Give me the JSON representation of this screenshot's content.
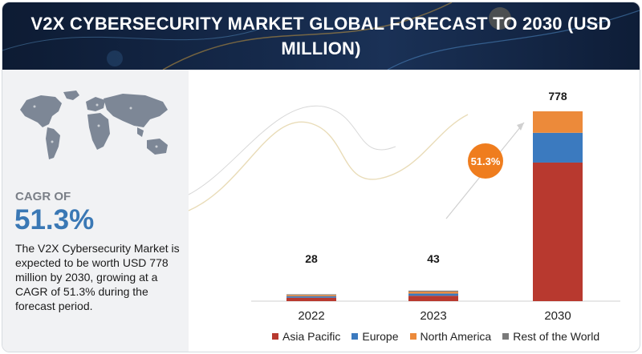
{
  "banner": {
    "title": "V2X CYBERSECURITY MARKET GLOBAL FORECAST TO 2030 (USD MILLION)"
  },
  "left_panel": {
    "cagr_label": "CAGR OF",
    "cagr_value": "51.3%",
    "description": "The V2X Cybersecurity Market is expected to be worth USD 778 million by 2030, growing at a CAGR of 51.3% during the forecast period."
  },
  "growth_badge": "51.3%",
  "colors": {
    "banner": "#13264a",
    "asia_pacific": "#b8392f",
    "europe": "#3b7abf",
    "north_america": "#ec8a3a",
    "rest_of_world": "#7a7a7a",
    "badge": "#ef7d1e",
    "cagr": "#3a78b5"
  },
  "chart_data": {
    "type": "bar",
    "stacked": true,
    "categories": [
      "2022",
      "2023",
      "2030"
    ],
    "totals": [
      28,
      43,
      778
    ],
    "series": [
      {
        "name": "Asia Pacific",
        "values": [
          14,
          22,
          568
        ],
        "color": "#b8392f"
      },
      {
        "name": "Europe",
        "values": [
          6,
          9,
          122
        ],
        "color": "#3b7abf"
      },
      {
        "name": "North America",
        "values": [
          5,
          8,
          88
        ],
        "color": "#ec8a3a"
      },
      {
        "name": "Rest of the World",
        "values": [
          3,
          4,
          0
        ],
        "color": "#7a7a7a"
      }
    ],
    "legend_position": "bottom",
    "grid": false
  }
}
